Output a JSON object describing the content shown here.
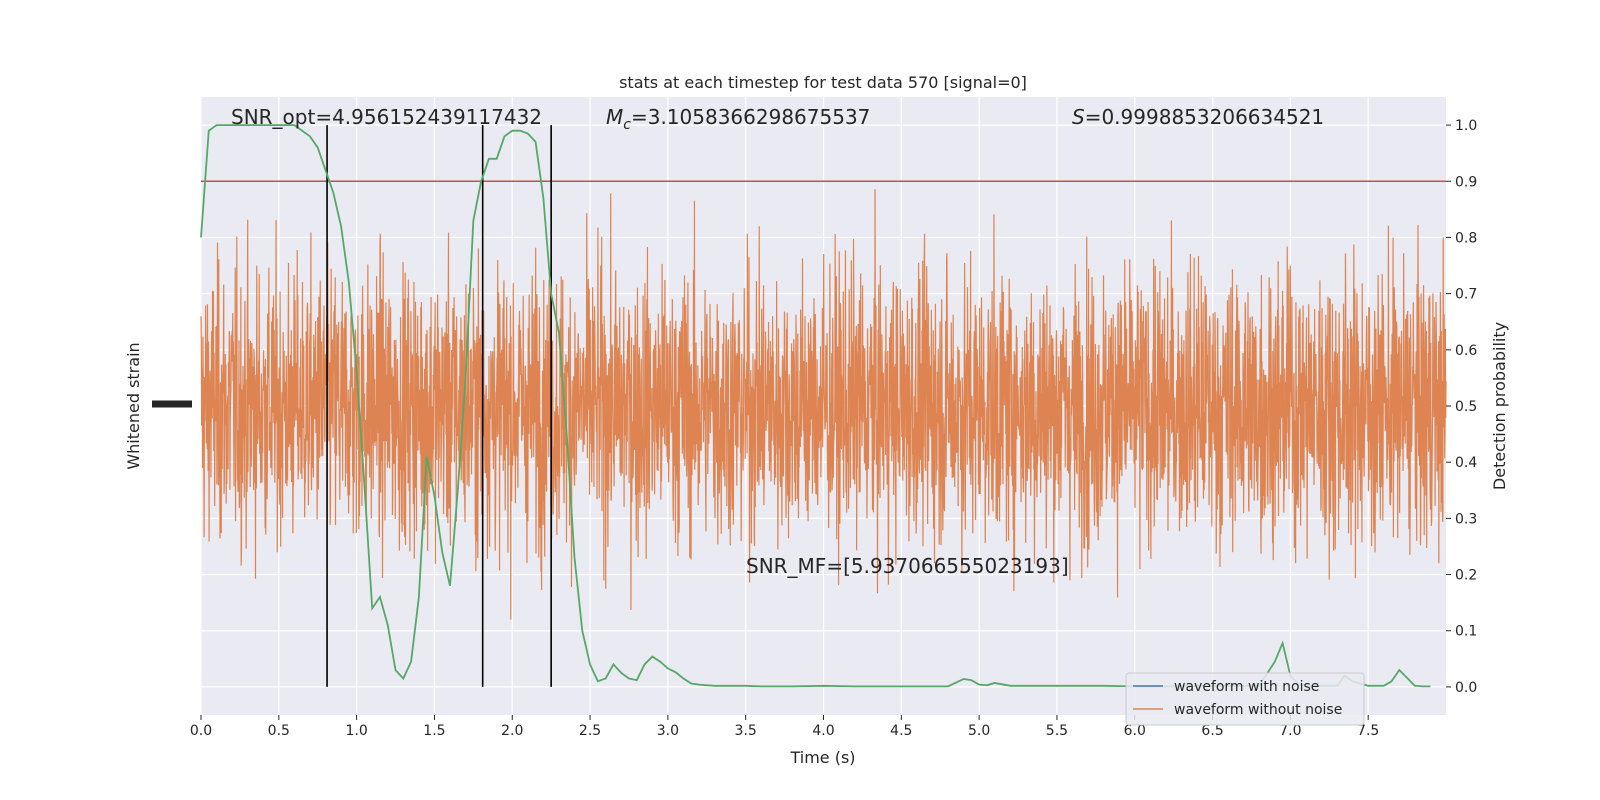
{
  "chart_data": {
    "type": "line",
    "title": "stats at each timestep for test data 570 [signal=0]",
    "xlabel": "Time (s)",
    "ylabel_left": "Whitened strain",
    "ylabel_right": "Detection probability",
    "xlim": [
      0.0,
      8.0
    ],
    "ylim_right": [
      -0.05,
      1.05
    ],
    "x_ticks": [
      "0.0",
      "0.5",
      "1.0",
      "1.5",
      "2.0",
      "2.5",
      "3.0",
      "3.5",
      "4.0",
      "4.5",
      "5.0",
      "5.5",
      "6.0",
      "6.5",
      "7.0",
      "7.5"
    ],
    "x_tick_values": [
      0.0,
      0.5,
      1.0,
      1.5,
      2.0,
      2.5,
      3.0,
      3.5,
      4.0,
      4.5,
      5.0,
      5.5,
      6.0,
      6.5,
      7.0,
      7.5
    ],
    "y_right_ticks": [
      "0.0",
      "0.1",
      "0.2",
      "0.3",
      "0.4",
      "0.5",
      "0.6",
      "0.7",
      "0.8",
      "0.9",
      "1.0"
    ],
    "y_right_tick_values": [
      0.0,
      0.1,
      0.2,
      0.3,
      0.4,
      0.5,
      0.6,
      0.7,
      0.8,
      0.9,
      1.0
    ],
    "grid": true,
    "legend_position": "bottom-right",
    "legend": [
      {
        "name": "waveform with noise",
        "color": "#4c72b0"
      },
      {
        "name": "waveform without noise",
        "color": "#dd8452"
      }
    ],
    "annotations": {
      "snr_opt": "SNR_opt=4.956152439117432",
      "mc": "=3.1058366298675537",
      "mc_symbol": "M",
      "mc_sub": "c",
      "s_value": "=0.9998853206634521",
      "s_symbol": "S",
      "snr_mf": "SNR_MF=[5.937066555023193]"
    },
    "threshold": 0.9,
    "threshold_color": "#c44e52",
    "noise_color": "#dd8452",
    "probability_color": "#55a868",
    "vertical_lines": [
      0.81,
      1.81,
      2.25
    ],
    "probability": {
      "x": [
        0.0,
        0.05,
        0.1,
        0.2,
        0.3,
        0.4,
        0.5,
        0.6,
        0.65,
        0.7,
        0.75,
        0.8,
        0.85,
        0.9,
        0.95,
        1.0,
        1.05,
        1.1,
        1.15,
        1.2,
        1.25,
        1.3,
        1.35,
        1.4,
        1.45,
        1.5,
        1.55,
        1.6,
        1.65,
        1.7,
        1.75,
        1.8,
        1.85,
        1.9,
        1.95,
        2.0,
        2.05,
        2.1,
        2.15,
        2.2,
        2.25,
        2.3,
        2.35,
        2.4,
        2.45,
        2.5,
        2.55,
        2.6,
        2.65,
        2.7,
        2.75,
        2.8,
        2.85,
        2.9,
        2.95,
        3.0,
        3.05,
        3.1,
        3.15,
        3.2,
        3.3,
        3.4,
        3.5,
        3.6,
        3.8,
        4.0,
        4.2,
        4.4,
        4.6,
        4.8,
        4.9,
        4.95,
        5.0,
        5.05,
        5.1,
        5.2,
        5.3,
        5.5,
        5.8,
        6.0,
        6.2,
        6.4,
        6.6,
        6.8,
        6.9,
        6.95,
        7.0,
        7.05,
        7.1,
        7.2,
        7.3,
        7.35,
        7.4,
        7.5,
        7.6,
        7.65,
        7.7,
        7.8,
        7.85,
        7.9
      ],
      "y": [
        0.8,
        0.99,
        1.0,
        1.0,
        1.0,
        1.0,
        1.0,
        1.0,
        0.99,
        0.98,
        0.96,
        0.92,
        0.88,
        0.82,
        0.72,
        0.56,
        0.36,
        0.14,
        0.16,
        0.11,
        0.03,
        0.015,
        0.045,
        0.16,
        0.41,
        0.34,
        0.24,
        0.18,
        0.35,
        0.55,
        0.83,
        0.9,
        0.94,
        0.94,
        0.98,
        0.99,
        0.99,
        0.985,
        0.97,
        0.87,
        0.7,
        0.63,
        0.45,
        0.23,
        0.1,
        0.04,
        0.01,
        0.015,
        0.04,
        0.025,
        0.015,
        0.012,
        0.04,
        0.054,
        0.045,
        0.033,
        0.026,
        0.015,
        0.006,
        0.004,
        0.002,
        0.002,
        0.002,
        0.001,
        0.001,
        0.002,
        0.001,
        0.001,
        0.001,
        0.001,
        0.014,
        0.012,
        0.004,
        0.003,
        0.007,
        0.002,
        0.002,
        0.002,
        0.002,
        0.001,
        0.001,
        0.002,
        0.002,
        0.002,
        0.045,
        0.078,
        0.02,
        0.005,
        0.002,
        0.002,
        0.002,
        0.02,
        0.01,
        0.002,
        0.002,
        0.01,
        0.03,
        0.002,
        0.001,
        0.001
      ]
    }
  }
}
